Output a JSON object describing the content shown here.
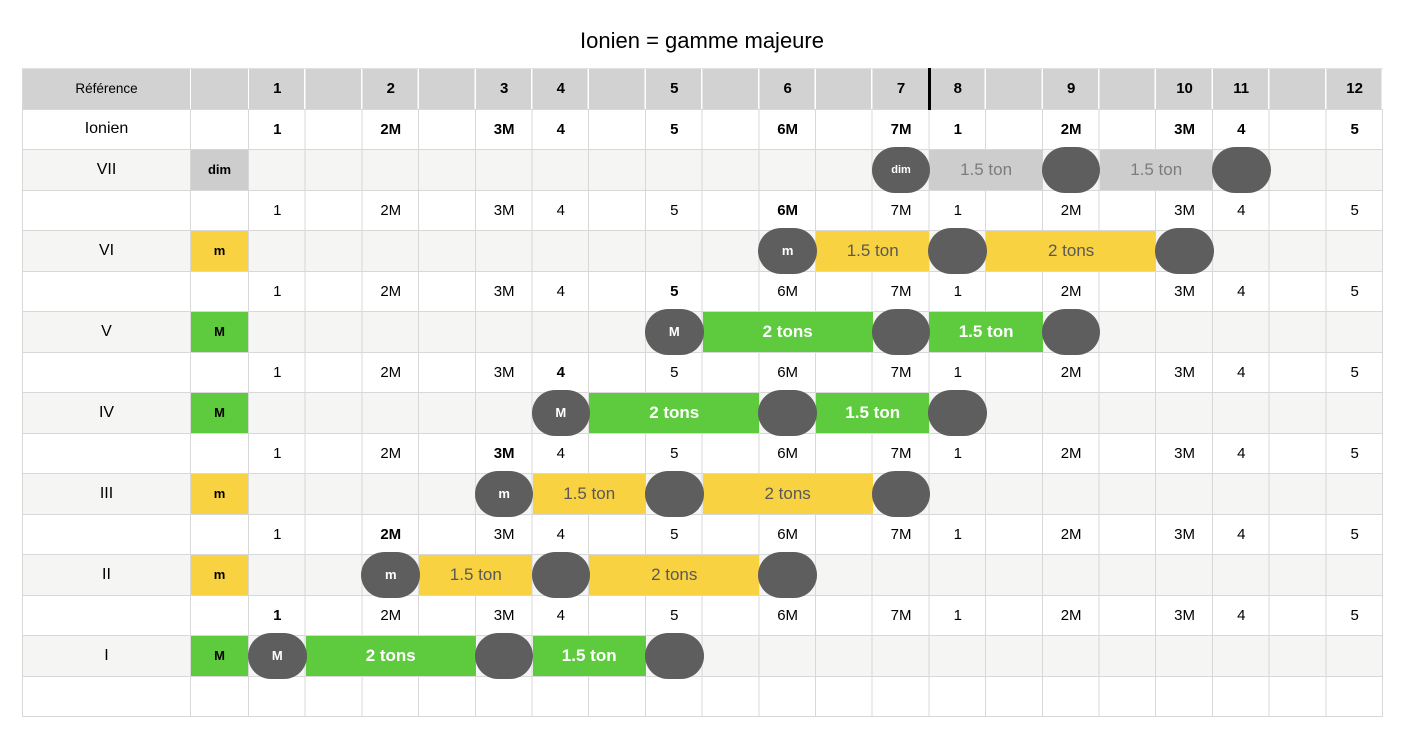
{
  "title": "Ionien = gamme majeure",
  "colors": {
    "green": "#5ecb3e",
    "yellow": "#f8d240",
    "gray_bar": "#cdcdcd",
    "dark_circle": "#5e5e5e",
    "header_bg": "#d2d2d2",
    "mode_row_bg": "#f5f5f4",
    "grid_line": "#d8d8d8"
  },
  "header": {
    "ref_label": "Référence",
    "numbers": [
      "1",
      "2",
      "3",
      "4",
      "5",
      "6",
      "7",
      "8",
      "9",
      "10",
      "11",
      "12"
    ]
  },
  "ionien": {
    "label": "Ionien",
    "degrees": [
      "1",
      "2M",
      "3M",
      "4",
      "5",
      "6M",
      "7M",
      "1",
      "2M",
      "3M",
      "4",
      "5"
    ]
  },
  "scale_degrees": [
    "1",
    "2M",
    "3M",
    "4",
    "5",
    "6M",
    "7M",
    "1",
    "2M",
    "3M",
    "4",
    "5"
  ],
  "modes": [
    {
      "label": "VII",
      "quality": "dim",
      "root_label": "dim",
      "root_column": "7",
      "intervals": [
        "1.5 ton",
        "1.5 ton"
      ]
    },
    {
      "label": "VI",
      "quality": "m",
      "root_label": "m",
      "root_column": "6",
      "intervals": [
        "1.5 ton",
        "2 tons"
      ]
    },
    {
      "label": "V",
      "quality": "M",
      "root_label": "M",
      "root_column": "5",
      "intervals": [
        "2 tons",
        "1.5 ton"
      ]
    },
    {
      "label": "IV",
      "quality": "M",
      "root_label": "M",
      "root_column": "4",
      "intervals": [
        "2 tons",
        "1.5 ton"
      ]
    },
    {
      "label": "III",
      "quality": "m",
      "root_label": "m",
      "root_column": "3",
      "intervals": [
        "1.5 ton",
        "2 tons"
      ]
    },
    {
      "label": "II",
      "quality": "m",
      "root_label": "m",
      "root_column": "2",
      "intervals": [
        "1.5 ton",
        "2 tons"
      ]
    },
    {
      "label": "I",
      "quality": "M",
      "root_label": "M",
      "root_column": "1",
      "intervals": [
        "2 tons",
        "1.5 ton"
      ]
    }
  ]
}
